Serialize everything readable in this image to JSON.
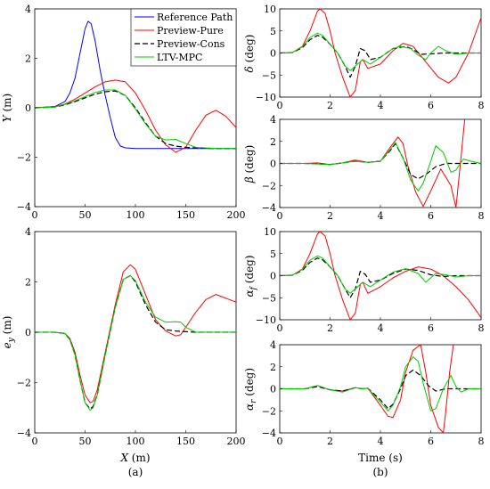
{
  "figure": {
    "captions": [
      "(a)",
      "(b)"
    ]
  },
  "legend": {
    "entries": [
      {
        "label": "Reference Path",
        "color": "#0000ff",
        "dash": "solid"
      },
      {
        "label": "Preview-Pure",
        "color": "#ff0000",
        "dash": "solid"
      },
      {
        "label": "Preview-Cons",
        "color": "#000000",
        "dash": "dashed"
      },
      {
        "label": "LTV-MPC",
        "color": "#00cc00",
        "dash": "solid"
      }
    ]
  },
  "colors": {
    "ref": "#0000ff",
    "pure": "#ff0000",
    "cons": "#000000",
    "mpc": "#00cc00"
  },
  "chart_data": [
    {
      "id": "y_vs_x",
      "type": "line",
      "xlabel": "",
      "ylabel": "Y (m)",
      "xlim": [
        0,
        200
      ],
      "ylim": [
        -4,
        4
      ],
      "xticks": [
        0,
        50,
        100,
        150,
        200
      ],
      "yticks": [
        -4,
        -2,
        0,
        2,
        4
      ],
      "grid": false,
      "series": [
        {
          "key": "ref",
          "name": "Reference Path",
          "x": [
            0,
            20,
            30,
            35,
            40,
            45,
            50,
            53,
            56,
            60,
            65,
            70,
            75,
            80,
            85,
            90,
            100,
            120,
            150,
            200
          ],
          "y": [
            0,
            0.05,
            0.25,
            0.6,
            1.2,
            2.2,
            3.2,
            3.5,
            3.4,
            2.7,
            1.5,
            0.5,
            -0.4,
            -1.2,
            -1.55,
            -1.62,
            -1.65,
            -1.65,
            -1.65,
            -1.65
          ]
        },
        {
          "key": "pure",
          "name": "Preview-Pure",
          "x": [
            0,
            20,
            30,
            40,
            50,
            60,
            70,
            80,
            90,
            100,
            110,
            120,
            130,
            140,
            150,
            160,
            170,
            180,
            190,
            200
          ],
          "y": [
            0,
            0.05,
            0.15,
            0.35,
            0.6,
            0.85,
            1.05,
            1.12,
            1.05,
            0.6,
            -0.1,
            -0.9,
            -1.5,
            -1.8,
            -1.6,
            -0.9,
            -0.3,
            -0.1,
            -0.35,
            -0.8
          ]
        },
        {
          "key": "cons",
          "name": "Preview-Cons",
          "x": [
            0,
            20,
            30,
            40,
            50,
            60,
            70,
            80,
            90,
            100,
            110,
            120,
            130,
            140,
            150,
            160,
            180,
            200
          ],
          "y": [
            0,
            0.03,
            0.12,
            0.25,
            0.4,
            0.55,
            0.65,
            0.68,
            0.5,
            0.0,
            -0.6,
            -1.15,
            -1.45,
            -1.55,
            -1.6,
            -1.62,
            -1.65,
            -1.65
          ]
        },
        {
          "key": "mpc",
          "name": "LTV-MPC",
          "x": [
            0,
            20,
            30,
            40,
            50,
            60,
            70,
            80,
            90,
            100,
            110,
            120,
            130,
            140,
            150,
            160,
            180,
            200
          ],
          "y": [
            0,
            0.03,
            0.14,
            0.28,
            0.45,
            0.62,
            0.72,
            0.72,
            0.5,
            -0.05,
            -0.65,
            -1.15,
            -1.3,
            -1.28,
            -1.45,
            -1.6,
            -1.65,
            -1.65
          ]
        }
      ]
    },
    {
      "id": "ey_vs_x",
      "type": "line",
      "xlabel": "X (m)",
      "ylabel": "e_y (m)",
      "xlim": [
        0,
        200
      ],
      "ylim": [
        -4,
        4
      ],
      "xticks": [
        0,
        50,
        100,
        150,
        200
      ],
      "yticks": [
        -4,
        -2,
        0,
        2,
        4
      ],
      "grid": false,
      "series": [
        {
          "key": "pure",
          "name": "Preview-Pure",
          "x": [
            0,
            20,
            30,
            35,
            40,
            45,
            50,
            55,
            58,
            62,
            70,
            80,
            88,
            95,
            100,
            110,
            120,
            130,
            140,
            145,
            150,
            160,
            170,
            180,
            190,
            200
          ],
          "y": [
            0,
            0,
            -0.05,
            -0.25,
            -0.8,
            -1.7,
            -2.5,
            -2.8,
            -2.75,
            -2.3,
            -0.8,
            1.1,
            2.4,
            2.68,
            2.5,
            1.5,
            0.5,
            0.05,
            -0.15,
            -0.1,
            0.2,
            0.8,
            1.3,
            1.5,
            1.35,
            1.2
          ]
        },
        {
          "key": "cons",
          "name": "Preview-Cons",
          "x": [
            0,
            20,
            30,
            35,
            40,
            45,
            50,
            55,
            58,
            62,
            70,
            80,
            88,
            95,
            100,
            110,
            120,
            130,
            140,
            150,
            160,
            180,
            200
          ],
          "y": [
            0,
            0,
            -0.05,
            -0.3,
            -0.9,
            -1.9,
            -2.8,
            -3.05,
            -2.95,
            -2.5,
            -0.9,
            1.0,
            2.1,
            2.25,
            2.0,
            1.1,
            0.4,
            0.1,
            0.05,
            0.02,
            0,
            0,
            0
          ]
        },
        {
          "key": "mpc",
          "name": "LTV-MPC",
          "x": [
            0,
            20,
            30,
            35,
            40,
            45,
            50,
            55,
            58,
            62,
            70,
            80,
            88,
            95,
            100,
            110,
            120,
            130,
            140,
            145,
            150,
            160,
            180,
            200
          ],
          "y": [
            0,
            0,
            -0.05,
            -0.3,
            -0.9,
            -1.9,
            -2.8,
            -3.1,
            -3.0,
            -2.5,
            -0.9,
            1.0,
            2.1,
            2.25,
            2.05,
            1.2,
            0.6,
            0.4,
            0.42,
            0.4,
            0.2,
            0,
            0,
            0
          ]
        }
      ]
    },
    {
      "id": "delta_vs_t",
      "type": "line",
      "xlabel": "",
      "ylabel": "δ (deg)",
      "xlim": [
        0,
        8
      ],
      "ylim": [
        -10,
        10
      ],
      "xticks": [
        0,
        2,
        4,
        6,
        8
      ],
      "yticks": [
        -10,
        -5,
        0,
        5,
        10
      ],
      "grid": false,
      "series": [
        {
          "key": "pure",
          "name": "Preview-Pure",
          "x": [
            0,
            0.5,
            0.9,
            1.2,
            1.5,
            1.6,
            1.8,
            2.0,
            2.2,
            2.5,
            2.8,
            3.0,
            3.2,
            3.3,
            3.5,
            4.0,
            4.5,
            4.9,
            5.3,
            5.8,
            6.3,
            6.7,
            7.0,
            7.5,
            8.0
          ],
          "y": [
            0,
            0.1,
            1.5,
            5.0,
            9.5,
            10,
            9.0,
            5.0,
            0,
            -5.5,
            -10,
            -8.5,
            -2.0,
            -1.5,
            -3.5,
            -2.5,
            0.5,
            2.2,
            1.5,
            -2.0,
            -5.5,
            -6.8,
            -5.5,
            0,
            8.0
          ]
        },
        {
          "key": "cons",
          "name": "Preview-Cons",
          "x": [
            0,
            0.5,
            0.9,
            1.2,
            1.5,
            1.7,
            2.0,
            2.3,
            2.6,
            2.8,
            3.0,
            3.2,
            3.4,
            3.6,
            4.0,
            4.5,
            5.0,
            5.3,
            5.6,
            6.0,
            6.5,
            7.0,
            8.0
          ],
          "y": [
            0,
            0.1,
            1.2,
            3.0,
            4.0,
            3.6,
            2.0,
            0,
            -3.0,
            -5.5,
            -3.0,
            1.0,
            0.5,
            -1.5,
            -1.0,
            1.0,
            1.5,
            0.8,
            -0.3,
            -0.2,
            0,
            0,
            0
          ]
        },
        {
          "key": "mpc",
          "name": "LTV-MPC",
          "x": [
            0,
            0.5,
            0.9,
            1.2,
            1.5,
            1.7,
            2.0,
            2.3,
            2.6,
            2.8,
            3.0,
            3.3,
            3.6,
            4.0,
            4.5,
            4.8,
            5.2,
            5.5,
            5.8,
            6.0,
            6.3,
            6.6,
            7.0,
            7.5,
            8.0
          ],
          "y": [
            0,
            0.1,
            1.4,
            3.5,
            4.5,
            4.0,
            2.0,
            0,
            -3.0,
            -4.0,
            -3.0,
            -1.5,
            -2.5,
            -1.0,
            1.0,
            1.5,
            1.0,
            -0.5,
            -1.5,
            0,
            1.5,
            0.5,
            -0.3,
            0,
            0
          ]
        }
      ]
    },
    {
      "id": "beta_vs_t",
      "type": "line",
      "xlabel": "",
      "ylabel": "β (deg)",
      "xlim": [
        0,
        8
      ],
      "ylim": [
        -4,
        4
      ],
      "xticks": [
        0,
        2,
        4,
        6,
        8
      ],
      "yticks": [
        -4,
        -2,
        0,
        2,
        4
      ],
      "grid": false,
      "series": [
        {
          "key": "pure",
          "name": "Preview-Pure",
          "x": [
            0,
            1.0,
            1.5,
            2.0,
            2.5,
            3.0,
            3.5,
            4.0,
            4.4,
            4.7,
            4.9,
            5.1,
            5.4,
            5.7,
            6.0,
            6.4,
            6.8,
            7.0,
            7.2,
            7.35
          ],
          "y": [
            0,
            0,
            0.05,
            -0.1,
            0.05,
            0.3,
            0.1,
            0.2,
            1.5,
            2.4,
            1.8,
            -0.3,
            -2.6,
            -3.9,
            -2.5,
            -0.5,
            -2.0,
            -4.0,
            0.5,
            4.0
          ]
        },
        {
          "key": "cons",
          "name": "Preview-Cons",
          "x": [
            0,
            1.0,
            2.0,
            2.5,
            3.0,
            3.5,
            4.0,
            4.4,
            4.6,
            4.9,
            5.2,
            5.5,
            5.8,
            6.2,
            6.6,
            7.0,
            8.0
          ],
          "y": [
            0,
            0,
            -0.1,
            0.05,
            0.2,
            0.1,
            0.2,
            1.2,
            1.8,
            0.5,
            -1.0,
            -1.4,
            -1.0,
            -0.3,
            0,
            0,
            0
          ]
        },
        {
          "key": "mpc",
          "name": "LTV-MPC",
          "x": [
            0,
            1.0,
            2.0,
            2.5,
            3.0,
            3.5,
            4.0,
            4.4,
            4.6,
            4.9,
            5.2,
            5.5,
            5.7,
            6.0,
            6.2,
            6.5,
            6.8,
            7.0,
            7.3,
            7.6,
            8.0
          ],
          "y": [
            0,
            0,
            -0.1,
            0.05,
            0.2,
            0.1,
            0.2,
            1.3,
            1.9,
            0.5,
            -1.5,
            -2.5,
            -1.8,
            0.2,
            1.6,
            1.0,
            -0.8,
            -0.6,
            0.4,
            0.2,
            0
          ]
        }
      ]
    },
    {
      "id": "alphaf_vs_t",
      "type": "line",
      "xlabel": "",
      "ylabel": "α_f (deg)",
      "xlim": [
        0,
        8
      ],
      "ylim": [
        -10,
        10
      ],
      "xticks": [
        0,
        2,
        4,
        6,
        8
      ],
      "yticks": [
        -10,
        -5,
        0,
        5,
        10
      ],
      "grid": false,
      "series": [
        {
          "key": "pure",
          "name": "Preview-Pure",
          "x": [
            0,
            0.5,
            0.9,
            1.2,
            1.5,
            1.6,
            1.8,
            2.0,
            2.2,
            2.5,
            2.8,
            3.0,
            3.2,
            3.3,
            3.5,
            4.0,
            4.5,
            5.0,
            5.5,
            6.0,
            6.5,
            7.0,
            7.5,
            8.0
          ],
          "y": [
            0,
            0.1,
            1.5,
            5.0,
            9.5,
            10,
            9.0,
            5.0,
            0,
            -5.5,
            -10,
            -8.5,
            -2.0,
            -1.5,
            -4.0,
            -2.5,
            -0.5,
            1.0,
            2.0,
            1.5,
            0,
            -2.5,
            -5.5,
            -9.5
          ]
        },
        {
          "key": "cons",
          "name": "Preview-Cons",
          "x": [
            0,
            0.5,
            0.9,
            1.2,
            1.5,
            1.7,
            2.0,
            2.3,
            2.6,
            2.8,
            3.0,
            3.2,
            3.4,
            3.6,
            4.0,
            4.5,
            5.0,
            5.5,
            6.0,
            6.5,
            7.0,
            8.0
          ],
          "y": [
            0,
            0.1,
            1.2,
            3.0,
            4.0,
            3.6,
            2.0,
            0,
            -3.0,
            -5.0,
            -3.0,
            1.0,
            0.3,
            -1.5,
            -1.0,
            0.5,
            1.5,
            1.2,
            0.2,
            -0.2,
            0,
            0
          ]
        },
        {
          "key": "mpc",
          "name": "LTV-MPC",
          "x": [
            0,
            0.5,
            0.9,
            1.2,
            1.5,
            1.7,
            2.0,
            2.3,
            2.6,
            2.8,
            3.0,
            3.3,
            3.6,
            4.0,
            4.5,
            5.0,
            5.5,
            5.8,
            6.2,
            6.6,
            7.0,
            7.5,
            8.0
          ],
          "y": [
            0,
            0.1,
            1.4,
            3.5,
            4.5,
            4.0,
            2.0,
            0,
            -3.0,
            -4.0,
            -3.0,
            -1.5,
            -2.5,
            -1.0,
            0.8,
            1.6,
            0.5,
            -1.5,
            0.5,
            0.2,
            -0.3,
            0,
            0
          ]
        }
      ]
    },
    {
      "id": "alphar_vs_t",
      "type": "line",
      "xlabel": "Time (s)",
      "ylabel": "α_r (deg)",
      "xlim": [
        0,
        8
      ],
      "ylim": [
        -4,
        4
      ],
      "xticks": [
        0,
        2,
        4,
        6,
        8
      ],
      "yticks": [
        -4,
        -2,
        0,
        2,
        4
      ],
      "grid": false,
      "series": [
        {
          "key": "pure",
          "name": "Preview-Pure",
          "x": [
            0,
            1.0,
            1.5,
            2.0,
            2.5,
            3.0,
            3.3,
            3.5,
            4.0,
            4.3,
            4.5,
            4.8,
            5.0,
            5.3,
            5.6,
            5.8,
            6.0,
            6.3,
            6.5,
            6.6,
            6.75,
            6.9
          ],
          "y": [
            0,
            0,
            0.3,
            -0.1,
            -0.2,
            0.1,
            0,
            0.05,
            -1.5,
            -2.5,
            -2.6,
            -1.0,
            1.5,
            3.5,
            4.0,
            1.5,
            -1.5,
            -3.5,
            -4.0,
            -2.0,
            1.5,
            4.0
          ]
        },
        {
          "key": "cons",
          "name": "Preview-Cons",
          "x": [
            0,
            1.0,
            1.5,
            2.0,
            2.5,
            3.0,
            3.3,
            3.5,
            4.0,
            4.3,
            4.5,
            4.8,
            5.0,
            5.3,
            5.6,
            5.9,
            6.2,
            6.6,
            7.0,
            8.0
          ],
          "y": [
            0,
            0,
            0.2,
            -0.1,
            -0.2,
            0.1,
            0,
            0.05,
            -1.0,
            -1.8,
            -1.4,
            0,
            1.2,
            1.7,
            1.2,
            0.3,
            -0.2,
            0,
            0,
            0
          ]
        },
        {
          "key": "mpc",
          "name": "LTV-MPC",
          "x": [
            0,
            1.0,
            1.5,
            2.0,
            2.5,
            3.0,
            3.3,
            3.5,
            4.0,
            4.3,
            4.5,
            4.8,
            5.0,
            5.3,
            5.5,
            5.7,
            6.0,
            6.2,
            6.5,
            6.8,
            7.0,
            7.2,
            7.5,
            8.0
          ],
          "y": [
            0,
            0,
            0.3,
            -0.1,
            -0.3,
            0.1,
            0,
            0.05,
            -1.2,
            -2.0,
            -1.5,
            0.2,
            2.0,
            2.9,
            2.5,
            0.5,
            -2.0,
            -1.8,
            0,
            1.2,
            0.2,
            -0.3,
            0,
            0
          ]
        }
      ]
    }
  ]
}
